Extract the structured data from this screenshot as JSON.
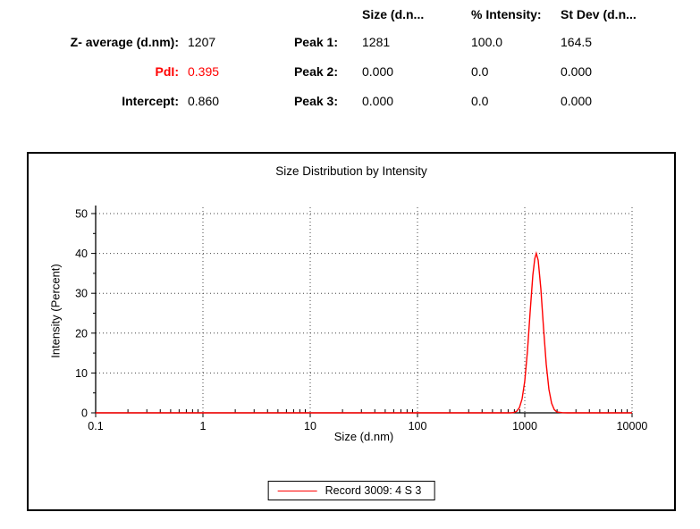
{
  "results_table": {
    "columns": [
      "Size (d.n...",
      "% Intensity:",
      "St Dev (d.n..."
    ],
    "rows": [
      {
        "label": "Z- average (d.nm):",
        "value": "1207",
        "peak": "Peak 1:",
        "size": "1281",
        "intensity": "100.0",
        "stdev": "164.5"
      },
      {
        "label": "PdI:",
        "value": "0.395",
        "peak": "Peak 2:",
        "size": "0.000",
        "intensity": "0.0",
        "stdev": "0.000"
      },
      {
        "label": "Intercept:",
        "value": "0.860",
        "peak": "Peak 3:",
        "size": "0.000",
        "intensity": "0.0",
        "stdev": "0.000"
      }
    ]
  },
  "chart_data": {
    "type": "line",
    "title": "Size Distribution by Intensity",
    "xlabel": "Size (d.nm)",
    "ylabel": "Intensity (Percent)",
    "x_scale": "log",
    "xlim": [
      0.1,
      10000
    ],
    "ylim": [
      0,
      50
    ],
    "x_ticks": [
      0.1,
      1,
      10,
      100,
      1000,
      10000
    ],
    "y_ticks": [
      0,
      10,
      20,
      30,
      40,
      50
    ],
    "grid": "dotted",
    "legend_position": "bottom",
    "series": [
      {
        "name": "Record 3009: 4 S 3",
        "color": "#ff0000",
        "peak_size_dnm": 1281,
        "peak_intensity_percent": 40,
        "points": [
          [
            0.1,
            0
          ],
          [
            1,
            0
          ],
          [
            10,
            0
          ],
          [
            100,
            0
          ],
          [
            400,
            0
          ],
          [
            650,
            0
          ],
          [
            708,
            0
          ],
          [
            750,
            0.02
          ],
          [
            794,
            0.1
          ],
          [
            841,
            0.4
          ],
          [
            891,
            1.3
          ],
          [
            944,
            3.5
          ],
          [
            1000,
            8
          ],
          [
            1059,
            15.5
          ],
          [
            1122,
            25.3
          ],
          [
            1189,
            34.5
          ],
          [
            1240,
            38.7
          ],
          [
            1281,
            40
          ],
          [
            1334,
            38.3
          ],
          [
            1413,
            31.1
          ],
          [
            1496,
            21.2
          ],
          [
            1585,
            12.2
          ],
          [
            1679,
            5.9
          ],
          [
            1778,
            2.4
          ],
          [
            1884,
            0.8
          ],
          [
            1995,
            0.2
          ],
          [
            2239,
            0.05
          ],
          [
            2500,
            0
          ],
          [
            5000,
            0
          ],
          [
            10000,
            0
          ]
        ]
      }
    ]
  },
  "colors": {
    "accent_red": "#ff0000",
    "grid": "#444444",
    "axis": "#000000"
  }
}
